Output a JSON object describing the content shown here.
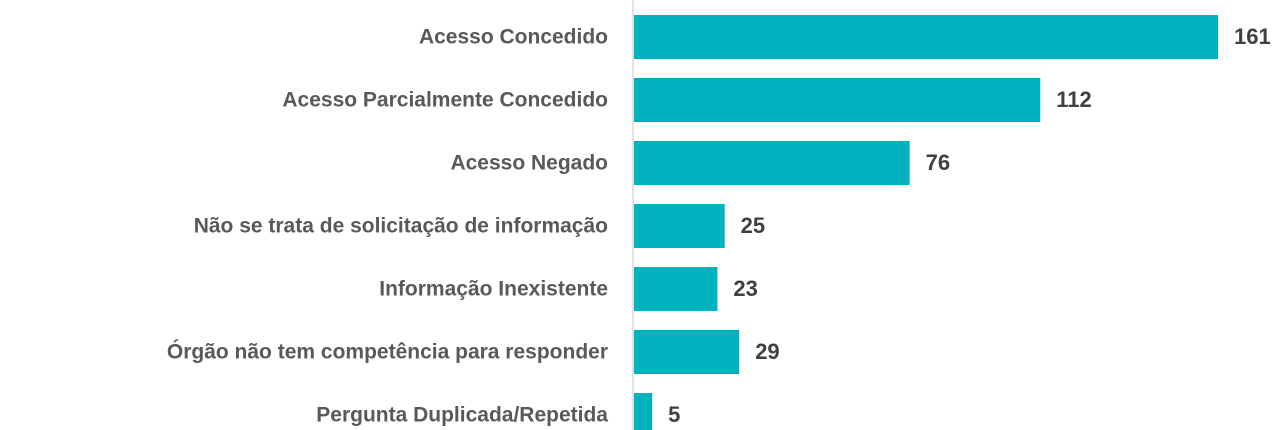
{
  "chart_data": {
    "type": "bar",
    "orientation": "horizontal",
    "categories": [
      "Acesso Concedido",
      "Acesso Parcialmente Concedido",
      "Acesso Negado",
      "Não se trata de solicitação de informação",
      "Informação Inexistente",
      "Órgão não tem competência para responder",
      "Pergunta Duplicada/Repetida"
    ],
    "values": [
      161,
      112,
      76,
      25,
      23,
      29,
      5
    ],
    "color": "#00b2bd"
  }
}
